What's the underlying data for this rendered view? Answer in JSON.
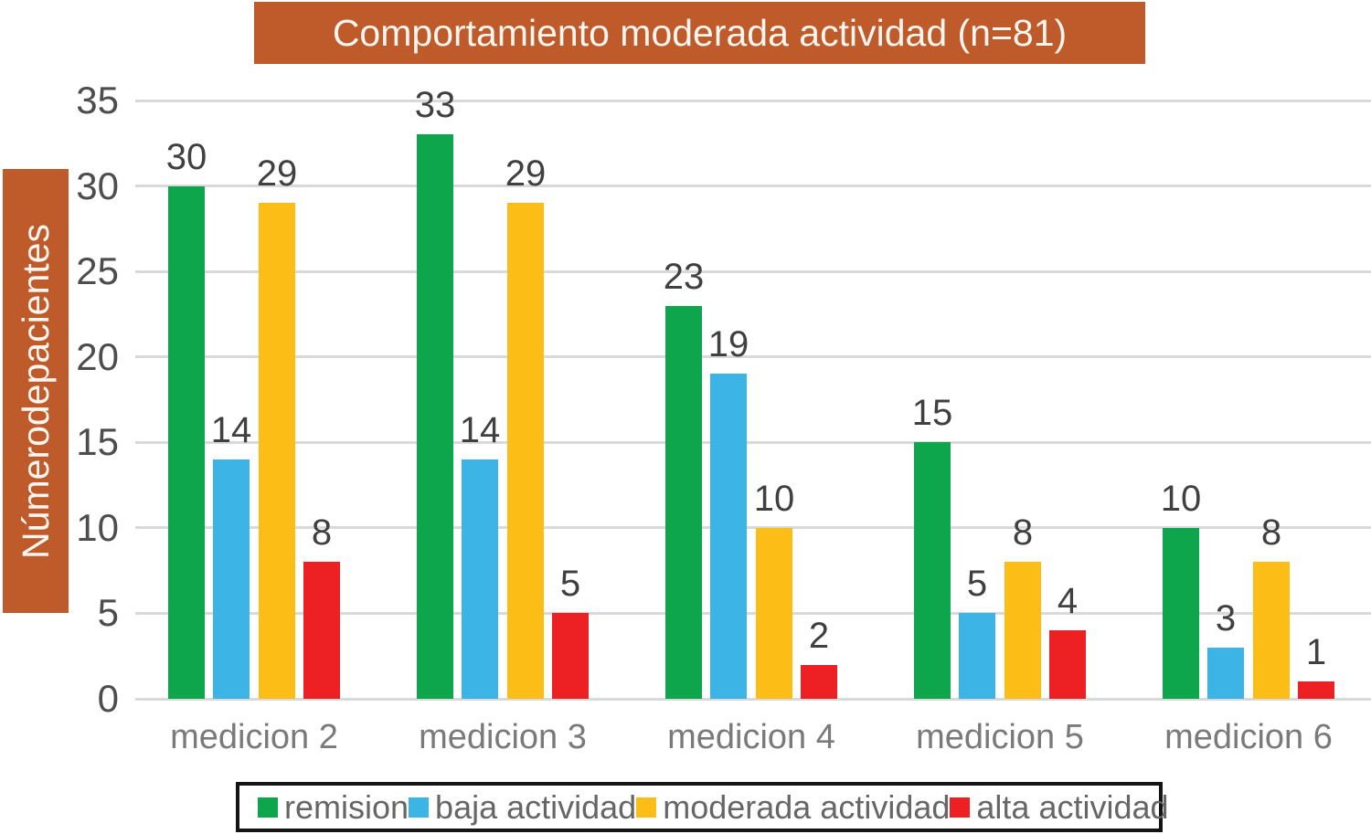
{
  "title": "Comportamiento moderada actividad (n=81)",
  "y_axis_label": "Númerodepacientes",
  "colors": {
    "banner_bg": "#bf5a2a",
    "banner_text": "#faf5ee",
    "gridline": "#d9d9d9",
    "tick_text": "#4d4d4d",
    "bar_label_text": "#404040",
    "x_label_text": "#7a7a7a",
    "legend_text": "#666666",
    "legend_border": "#141414"
  },
  "chart_data": {
    "type": "bar",
    "title": "Comportamiento moderada actividad (n=81)",
    "xlabel": "",
    "ylabel": "Númerodepacientes",
    "categories": [
      "medicion 2",
      "medicion 3",
      "medicion 4",
      "medicion 5",
      "medicion 6"
    ],
    "series": [
      {
        "name": "remision",
        "color": "#0da64c",
        "values": [
          30,
          33,
          23,
          15,
          10
        ]
      },
      {
        "name": "baja actividad",
        "color": "#3db4e6",
        "values": [
          14,
          14,
          19,
          5,
          3
        ]
      },
      {
        "name": "moderada actividad",
        "color": "#fcbd17",
        "values": [
          29,
          29,
          10,
          8,
          8
        ]
      },
      {
        "name": "alta actividad",
        "color": "#ed2024",
        "values": [
          8,
          5,
          2,
          4,
          1
        ]
      }
    ],
    "ylim": [
      0,
      35
    ],
    "ytick_step": 5,
    "grid": true,
    "data_labels": true,
    "legend_position": "bottom"
  }
}
